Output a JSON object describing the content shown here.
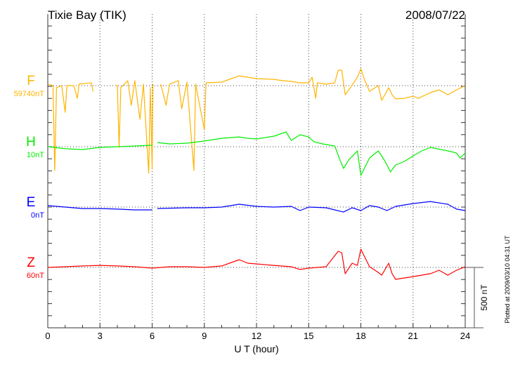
{
  "chart_data": {
    "type": "line",
    "title": "Tixie Bay (TIK)",
    "date": "2008/07/22",
    "xlabel": "U T (hour)",
    "xlim": [
      0,
      24
    ],
    "xticks": [
      "0",
      "3",
      "6",
      "9",
      "12",
      "15",
      "18",
      "21",
      "24"
    ],
    "grid": true,
    "scale_bar_label": "500 nT",
    "footer": "Plotted at 2009/03/10 04:31 UT",
    "series": [
      {
        "name": "F",
        "offset_label": "59740nT",
        "color": "#ffb400",
        "points": [
          [
            0,
            12
          ],
          [
            0.3,
            0
          ],
          [
            0.4,
            -703
          ],
          [
            0.5,
            -17
          ],
          [
            0.8,
            0
          ],
          [
            1.0,
            -221
          ],
          [
            1.1,
            0
          ],
          [
            1.5,
            0
          ],
          [
            1.7,
            -105
          ],
          [
            1.8,
            12
          ],
          [
            2.5,
            23
          ],
          [
            2.6,
            -47
          ],
          null,
          [
            3.9,
            0
          ],
          [
            4.0,
            0
          ],
          [
            4.1,
            -511
          ],
          [
            4.2,
            -17
          ],
          [
            4.6,
            41
          ],
          [
            4.8,
            -163
          ],
          [
            5.0,
            41
          ],
          [
            5.3,
            -279
          ],
          [
            5.5,
            12
          ],
          [
            5.8,
            -726
          ],
          [
            5.9,
            -17
          ],
          [
            6.0,
            -686
          ],
          [
            6.05,
            12
          ],
          null,
          [
            6.5,
            12
          ],
          [
            6.8,
            -163
          ],
          [
            7.0,
            12
          ],
          [
            7.5,
            41
          ],
          [
            7.7,
            -192
          ],
          [
            8.0,
            29
          ],
          [
            8.4,
            -703
          ],
          [
            8.5,
            12
          ],
          [
            9.0,
            -366
          ],
          [
            9.1,
            23
          ],
          [
            10,
            29
          ],
          [
            11,
            81
          ],
          [
            11.5,
            70
          ],
          [
            12,
            58
          ],
          [
            13,
            52
          ],
          [
            13.5,
            41
          ],
          [
            14,
            35
          ],
          [
            14.5,
            23
          ],
          [
            15,
            23
          ],
          [
            15.2,
            70
          ],
          [
            15.4,
            -105
          ],
          [
            15.5,
            23
          ],
          [
            16,
            12
          ],
          [
            16.5,
            23
          ],
          [
            16.7,
            128
          ],
          [
            16.9,
            128
          ],
          [
            17.1,
            -76
          ],
          [
            17.4,
            -17
          ],
          [
            17.8,
            70
          ],
          [
            18,
            139
          ],
          [
            18.2,
            52
          ],
          [
            18.5,
            -47
          ],
          [
            19,
            0
          ],
          [
            19.2,
            -122
          ],
          [
            19.6,
            -17
          ],
          [
            19.8,
            -76
          ],
          [
            20,
            -110
          ],
          [
            20.5,
            -105
          ],
          [
            21,
            -87
          ],
          [
            21.3,
            -105
          ],
          [
            22,
            -58
          ],
          [
            22.5,
            -35
          ],
          [
            23,
            -76
          ],
          [
            23.5,
            -35
          ],
          [
            24,
            0
          ]
        ]
      },
      {
        "name": "H",
        "offset_label": "10nT",
        "color": "#00ee00",
        "points": [
          [
            0,
            0
          ],
          [
            1,
            -17
          ],
          [
            2,
            -23
          ],
          [
            3,
            -6
          ],
          [
            4,
            0
          ],
          [
            5,
            6
          ],
          [
            6,
            12
          ],
          null,
          [
            6.3,
            35
          ],
          [
            7,
            23
          ],
          [
            8,
            29
          ],
          [
            9,
            47
          ],
          [
            10,
            70
          ],
          [
            11,
            81
          ],
          [
            11.5,
            70
          ],
          [
            12,
            64
          ],
          [
            13,
            87
          ],
          [
            13.7,
            122
          ],
          [
            14,
            52
          ],
          [
            14.5,
            99
          ],
          [
            15,
            81
          ],
          [
            15.3,
            41
          ],
          [
            15.8,
            23
          ],
          [
            16.5,
            6
          ],
          [
            16.8,
            -110
          ],
          [
            17,
            -180
          ],
          [
            17.3,
            -110
          ],
          [
            17.8,
            -35
          ],
          [
            18,
            -238
          ],
          [
            18.5,
            -93
          ],
          [
            19,
            -35
          ],
          [
            19.4,
            -122
          ],
          [
            19.7,
            -209
          ],
          [
            20,
            -151
          ],
          [
            20.5,
            -122
          ],
          [
            21,
            -76
          ],
          [
            21.5,
            -35
          ],
          [
            22,
            -6
          ],
          [
            23,
            -35
          ],
          [
            23.5,
            -52
          ],
          [
            23.7,
            -93
          ],
          [
            24,
            -52
          ]
        ]
      },
      {
        "name": "E",
        "offset_label": "0nT",
        "color": "#0000ff",
        "points": [
          [
            0,
            12
          ],
          [
            1,
            0
          ],
          [
            2,
            -12
          ],
          [
            3,
            -12
          ],
          [
            4,
            -17
          ],
          [
            5,
            -23
          ],
          [
            6,
            -23
          ],
          null,
          [
            6.3,
            -12
          ],
          [
            8,
            -6
          ],
          [
            9,
            -6
          ],
          [
            10,
            0
          ],
          [
            11,
            23
          ],
          [
            12,
            6
          ],
          [
            13,
            0
          ],
          [
            14,
            6
          ],
          [
            14.5,
            -29
          ],
          [
            15,
            0
          ],
          [
            16,
            -6
          ],
          [
            17,
            -41
          ],
          [
            17.5,
            -6
          ],
          [
            18,
            -29
          ],
          [
            18.5,
            12
          ],
          [
            19,
            0
          ],
          [
            19.5,
            -29
          ],
          [
            20,
            6
          ],
          [
            21,
            29
          ],
          [
            22,
            46
          ],
          [
            23,
            23
          ],
          [
            23.5,
            -17
          ],
          [
            24,
            -29
          ]
        ]
      },
      {
        "name": "Z",
        "offset_label": "60nT",
        "color": "#ff0000",
        "points": [
          [
            0,
            0
          ],
          [
            1,
            6
          ],
          [
            2,
            12
          ],
          [
            3,
            17
          ],
          [
            4,
            12
          ],
          [
            5,
            6
          ],
          [
            6,
            -6
          ],
          [
            7,
            6
          ],
          [
            8,
            6
          ],
          [
            9,
            0
          ],
          [
            10,
            12
          ],
          [
            11,
            64
          ],
          [
            11.5,
            35
          ],
          [
            12,
            29
          ],
          [
            13,
            17
          ],
          [
            14,
            6
          ],
          [
            14.5,
            -17
          ],
          [
            15,
            -6
          ],
          [
            16,
            6
          ],
          [
            16.7,
            134
          ],
          [
            16.9,
            122
          ],
          [
            17.1,
            -52
          ],
          [
            17.5,
            35
          ],
          [
            17.8,
            17
          ],
          [
            18,
            151
          ],
          [
            18.3,
            64
          ],
          [
            18.5,
            6
          ],
          [
            19,
            -41
          ],
          [
            19.2,
            -64
          ],
          [
            19.6,
            35
          ],
          [
            19.8,
            -52
          ],
          [
            20,
            -99
          ],
          [
            20.5,
            -87
          ],
          [
            21,
            -76
          ],
          [
            21.5,
            -64
          ],
          [
            22,
            -52
          ],
          [
            22.5,
            -23
          ],
          [
            23,
            -64
          ],
          [
            23.5,
            -23
          ],
          [
            24,
            6
          ]
        ]
      }
    ]
  }
}
